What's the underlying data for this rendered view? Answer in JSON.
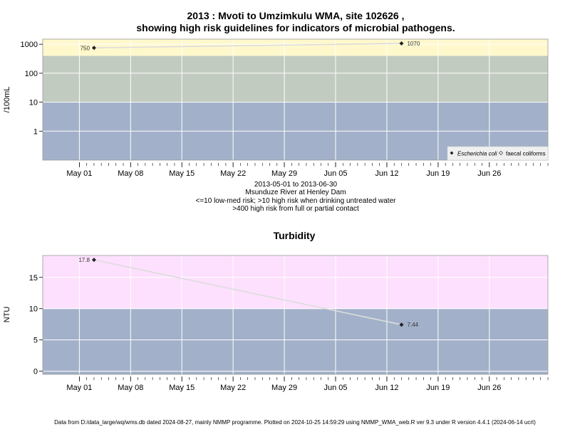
{
  "colors": {
    "band_low": "#a2b1c9",
    "band_mid": "#c2cbc0",
    "band_high_micro": "#fff8cc",
    "band_high_turb": "#fde0fd",
    "grid": "#ffffff",
    "series_line": "#dcdcdc",
    "marker": "#222222",
    "legend_bg": "#f0f0f0"
  },
  "footer": "Data from D:/data_large/wq/wms.db dated 2024-08-27, mainly NMMP programme. Plotted on 2024-10-25 14:59:29 using NMMP_WMA_web.R ver 9.3 under R version 4.4.1 (2024-06-14 ucrt)",
  "chart_data": [
    {
      "type": "scatter",
      "title": "2013 : Mvoti to Umzimkulu WMA, site 102626 ,",
      "subtitle": "showing high risk guidelines for indicators of microbial pathogens.",
      "ylabel": "/100mL",
      "xlabel": "",
      "y_scale": "log",
      "xlim": [
        "2013-04-26",
        "2013-07-04"
      ],
      "ylim": [
        0.1,
        1500
      ],
      "x_ticks": [
        {
          "date": "2013-05-01",
          "label": "May 01"
        },
        {
          "date": "2013-05-08",
          "label": "May 08"
        },
        {
          "date": "2013-05-15",
          "label": "May 15"
        },
        {
          "date": "2013-05-22",
          "label": "May 22"
        },
        {
          "date": "2013-05-29",
          "label": "May 29"
        },
        {
          "date": "2013-06-05",
          "label": "Jun 05"
        },
        {
          "date": "2013-06-12",
          "label": "Jun 12"
        },
        {
          "date": "2013-06-19",
          "label": "Jun 19"
        },
        {
          "date": "2013-06-26",
          "label": "Jun 26"
        }
      ],
      "y_ticks": [
        {
          "value": 1,
          "label": "1"
        },
        {
          "value": 10,
          "label": "10"
        },
        {
          "value": 100,
          "label": "100"
        },
        {
          "value": 1000,
          "label": "1000"
        }
      ],
      "bands": [
        {
          "from": 0.1,
          "to": 10,
          "color": "band_low"
        },
        {
          "from": 10,
          "to": 400,
          "color": "band_mid"
        },
        {
          "from": 400,
          "to": 1500,
          "color": "band_high_micro"
        }
      ],
      "series": [
        {
          "name": "Escherichia coli",
          "marker": "filled-diamond",
          "points": [
            {
              "x": "2013-05-03",
              "y": 750,
              "label": "750"
            },
            {
              "x": "2013-06-14",
              "y": 1070,
              "label": "1070"
            }
          ]
        },
        {
          "name": "faecal coliforms",
          "marker": "open-diamond",
          "points": []
        }
      ],
      "legend": "bottom-right",
      "grid": true,
      "captions": [
        "2013-05-01 to 2013-06-30",
        "Msunduze River at Henley Dam",
        "<=10 low-med risk; >10 high risk when drinking untreated water",
        ">400 high risk from full or partial contact"
      ]
    },
    {
      "type": "line",
      "title": "Turbidity",
      "ylabel": "NTU",
      "xlabel": "",
      "y_scale": "linear",
      "xlim": [
        "2013-04-26",
        "2013-07-04"
      ],
      "ylim": [
        -0.5,
        18.5
      ],
      "x_ticks": [
        {
          "date": "2013-05-01",
          "label": "May 01"
        },
        {
          "date": "2013-05-08",
          "label": "May 08"
        },
        {
          "date": "2013-05-15",
          "label": "May 15"
        },
        {
          "date": "2013-05-22",
          "label": "May 22"
        },
        {
          "date": "2013-05-29",
          "label": "May 29"
        },
        {
          "date": "2013-06-05",
          "label": "Jun 05"
        },
        {
          "date": "2013-06-12",
          "label": "Jun 12"
        },
        {
          "date": "2013-06-19",
          "label": "Jun 19"
        },
        {
          "date": "2013-06-26",
          "label": "Jun 26"
        }
      ],
      "y_ticks": [
        {
          "value": 0,
          "label": "0"
        },
        {
          "value": 5,
          "label": "5"
        },
        {
          "value": 10,
          "label": "10"
        },
        {
          "value": 15,
          "label": "15"
        }
      ],
      "bands": [
        {
          "from": -0.5,
          "to": 10,
          "color": "band_low"
        },
        {
          "from": 10,
          "to": 18.5,
          "color": "band_high_turb"
        }
      ],
      "series": [
        {
          "name": "",
          "marker": "filled-diamond",
          "points": [
            {
              "x": "2013-05-03",
              "y": 17.8,
              "label": "17.8"
            },
            {
              "x": "2013-06-14",
              "y": 7.44,
              "label": "7.44"
            }
          ]
        }
      ],
      "grid": true
    }
  ]
}
